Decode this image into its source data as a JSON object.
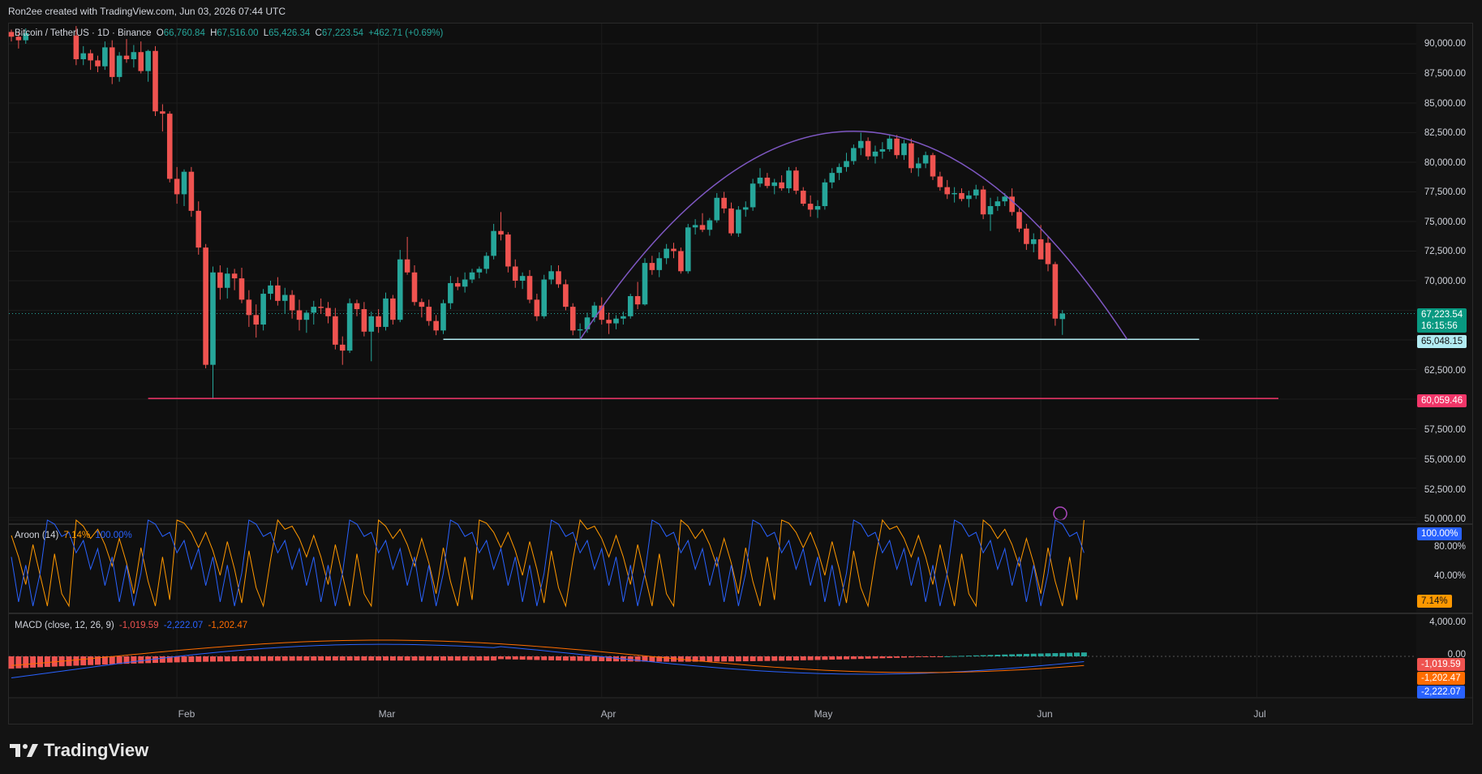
{
  "header": {
    "caption": "Ron2ee created with TradingView.com, Jun 03, 2026 07:44 UTC"
  },
  "main_legend": {
    "symbol": "Bitcoin / TetherUS · 1D · Binance",
    "o_label": "O",
    "o": "66,760.84",
    "h_label": "H",
    "h": "67,516.00",
    "l_label": "L",
    "l": "65,426.34",
    "c_label": "C",
    "c": "67,223.54",
    "change": "+462.71 (+0.69%)"
  },
  "aroon_legend": {
    "name": "Aroon (14)",
    "up": "7.14%",
    "down": "100.00%"
  },
  "macd_legend": {
    "name": "MACD (close, 12, 26, 9)",
    "hist": "-1,019.59",
    "macd": "-2,222.07",
    "signal": "-1,202.47"
  },
  "price_axis": [
    "90,000.00",
    "87,500.00",
    "85,000.00",
    "82,500.00",
    "80,000.00",
    "77,500.00",
    "75,000.00",
    "72,500.00",
    "70,000.00",
    "62,500.00",
    "57,500.00",
    "55,000.00",
    "52,500.00",
    "50,000.00"
  ],
  "price_tags": {
    "last": "67,223.54",
    "countdown": "16:15:56",
    "support": "65,048.15",
    "low": "60,059.46"
  },
  "aroon_axis": [
    "80.00%",
    "40.00%"
  ],
  "aroon_tags": {
    "down": "100.00%",
    "up": "7.14%"
  },
  "macd_axis": [
    "4,000.00",
    "0.00"
  ],
  "macd_tags": {
    "hist": "-1,019.59",
    "signal": "-1,202.47",
    "macd": "-2,222.07"
  },
  "x_axis": [
    "Feb",
    "Mar",
    "Apr",
    "May",
    "Jun",
    "Jul"
  ],
  "footer": {
    "brand": "TradingView"
  },
  "colors": {
    "up": "#26a69a",
    "down": "#ef5350",
    "arc": "#7e57c2",
    "support": "#b2ebf2",
    "low_line": "#f23669",
    "aroon_up": "#ff9800",
    "aroon_down": "#2962ff"
  },
  "chart_data": [
    {
      "type": "candlestick",
      "title": "Bitcoin / TetherUS · 1D · Binance",
      "ylim": [
        49600,
        91500
      ],
      "x_range": [
        "2026-01-09",
        "2026-07-07"
      ],
      "horizontal_levels": [
        65048.15,
        60059.46
      ],
      "ohlc_approx": [
        [
          "2026-01-09",
          91000,
          91200,
          90200,
          90600
        ],
        [
          "2026-01-10",
          90600,
          91000,
          89600,
          90300
        ],
        [
          "2026-01-11",
          90300,
          91300,
          90000,
          90900
        ],
        [
          "2026-01-18",
          90700,
          91500,
          88200,
          88700
        ],
        [
          "2026-01-19",
          88700,
          89800,
          88200,
          89200
        ],
        [
          "2026-01-20",
          89200,
          89500,
          87800,
          88600
        ],
        [
          "2026-01-21",
          88600,
          89000,
          87600,
          88100
        ],
        [
          "2026-01-22",
          88100,
          90200,
          87800,
          89700
        ],
        [
          "2026-01-23",
          89700,
          90300,
          86600,
          87200
        ],
        [
          "2026-01-24",
          87200,
          89300,
          86800,
          89000
        ],
        [
          "2026-01-25",
          89000,
          90400,
          88400,
          88700
        ],
        [
          "2026-01-26",
          88700,
          89900,
          88000,
          89300
        ],
        [
          "2026-01-27",
          89300,
          90200,
          87500,
          87700
        ],
        [
          "2026-01-28",
          87700,
          89500,
          86800,
          89400
        ],
        [
          "2026-01-29",
          89400,
          89800,
          83900,
          84300
        ],
        [
          "2026-01-30",
          84300,
          84900,
          82600,
          84100
        ],
        [
          "2026-01-31",
          84100,
          84300,
          78300,
          78600
        ],
        [
          "2026-02-01",
          78600,
          79600,
          76500,
          77300
        ],
        [
          "2026-02-02",
          77300,
          79400,
          76300,
          79200
        ],
        [
          "2026-02-03",
          79200,
          79600,
          75400,
          75900
        ],
        [
          "2026-02-04",
          75900,
          76700,
          72200,
          72800
        ],
        [
          "2026-02-05",
          72800,
          73100,
          62600,
          62900
        ],
        [
          "2026-02-06",
          62900,
          71200,
          60100,
          70700
        ],
        [
          "2026-02-07",
          70700,
          71300,
          68400,
          69400
        ],
        [
          "2026-02-08",
          69400,
          71100,
          68500,
          70600
        ],
        [
          "2026-02-09",
          70600,
          71000,
          69200,
          70200
        ],
        [
          "2026-02-10",
          70200,
          71100,
          68100,
          68400
        ],
        [
          "2026-02-11",
          68400,
          69200,
          66100,
          67100
        ],
        [
          "2026-02-12",
          67100,
          68000,
          65200,
          66300
        ],
        [
          "2026-02-13",
          66300,
          69300,
          65800,
          68900
        ],
        [
          "2026-02-14",
          68900,
          70000,
          68400,
          69600
        ],
        [
          "2026-02-15",
          69600,
          70300,
          67900,
          68300
        ],
        [
          "2026-02-16",
          68300,
          69400,
          67200,
          68800
        ],
        [
          "2026-02-17",
          68800,
          69200,
          66800,
          67500
        ],
        [
          "2026-02-18",
          67500,
          68400,
          65800,
          66700
        ],
        [
          "2026-02-19",
          66700,
          67500,
          65600,
          67300
        ],
        [
          "2026-02-20",
          67300,
          68300,
          66300,
          67800
        ],
        [
          "2026-02-21",
          67800,
          68500,
          67200,
          67700
        ],
        [
          "2026-02-22",
          67700,
          68200,
          66400,
          67000
        ],
        [
          "2026-02-23",
          67000,
          67700,
          64200,
          64600
        ],
        [
          "2026-02-24",
          64600,
          65300,
          62900,
          64100
        ],
        [
          "2026-02-25",
          64100,
          68500,
          63900,
          68100
        ],
        [
          "2026-02-26",
          68100,
          68400,
          67000,
          67600
        ],
        [
          "2026-02-27",
          67600,
          68200,
          65300,
          65700
        ],
        [
          "2026-02-28",
          65700,
          67400,
          63200,
          67000
        ],
        [
          "2026-03-01",
          67000,
          67600,
          65600,
          66100
        ],
        [
          "2026-03-02",
          66100,
          69000,
          65800,
          68500
        ],
        [
          "2026-03-03",
          68500,
          68800,
          66300,
          66700
        ],
        [
          "2026-03-04",
          66700,
          72600,
          66500,
          71800
        ],
        [
          "2026-03-05",
          71800,
          73700,
          70500,
          70700
        ],
        [
          "2026-03-06",
          70700,
          71300,
          67900,
          68200
        ],
        [
          "2026-03-07",
          68200,
          68500,
          66900,
          67800
        ],
        [
          "2026-03-08",
          67800,
          68400,
          66200,
          66600
        ],
        [
          "2026-03-09",
          66600,
          67100,
          65400,
          65800
        ],
        [
          "2026-03-10",
          65800,
          68400,
          65500,
          68100
        ],
        [
          "2026-03-11",
          68100,
          70400,
          67600,
          69800
        ],
        [
          "2026-03-12",
          69800,
          70300,
          69200,
          69500
        ],
        [
          "2026-03-13",
          69500,
          70700,
          69000,
          70100
        ],
        [
          "2026-03-14",
          70100,
          71000,
          69800,
          70700
        ],
        [
          "2026-03-15",
          70700,
          71200,
          70200,
          71000
        ],
        [
          "2026-03-16",
          71000,
          72400,
          70600,
          72100
        ],
        [
          "2026-03-17",
          72100,
          74800,
          71800,
          74200
        ],
        [
          "2026-03-18",
          74200,
          75800,
          73400,
          73900
        ],
        [
          "2026-03-19",
          73900,
          74100,
          70700,
          71200
        ],
        [
          "2026-03-20",
          71200,
          71800,
          69400,
          70000
        ],
        [
          "2026-03-21",
          70000,
          70700,
          69300,
          70400
        ],
        [
          "2026-03-22",
          70400,
          70900,
          68100,
          68400
        ],
        [
          "2026-03-23",
          68400,
          68900,
          66600,
          67000
        ],
        [
          "2026-03-24",
          67000,
          70500,
          66800,
          70100
        ],
        [
          "2026-03-25",
          70100,
          71300,
          69700,
          70800
        ],
        [
          "2026-03-26",
          70800,
          71300,
          69400,
          69700
        ],
        [
          "2026-03-27",
          69700,
          70100,
          67500,
          67800
        ],
        [
          "2026-03-28",
          67800,
          68100,
          65400,
          65800
        ],
        [
          "2026-03-29",
          65800,
          66400,
          65000,
          65900
        ],
        [
          "2026-03-30",
          65900,
          67300,
          65600,
          66900
        ],
        [
          "2026-03-31",
          66900,
          68200,
          66500,
          67900
        ],
        [
          "2026-04-01",
          67900,
          68600,
          66300,
          66700
        ],
        [
          "2026-04-02",
          66700,
          67300,
          65500,
          66400
        ],
        [
          "2026-04-03",
          66400,
          67100,
          65900,
          66800
        ],
        [
          "2026-04-04",
          66800,
          67400,
          66300,
          67000
        ],
        [
          "2026-04-05",
          67000,
          68900,
          66800,
          68700
        ],
        [
          "2026-04-06",
          68700,
          69900,
          67600,
          68000
        ],
        [
          "2026-04-07",
          68000,
          71900,
          67900,
          71500
        ],
        [
          "2026-04-08",
          71500,
          72100,
          70500,
          70900
        ],
        [
          "2026-04-09",
          70900,
          72400,
          70300,
          71900
        ],
        [
          "2026-04-10",
          71900,
          73100,
          71400,
          72700
        ],
        [
          "2026-04-11",
          72700,
          73200,
          71900,
          72500
        ],
        [
          "2026-04-12",
          72500,
          72800,
          70600,
          70800
        ],
        [
          "2026-04-13",
          70800,
          74800,
          70600,
          74500
        ],
        [
          "2026-04-14",
          74500,
          75200,
          73900,
          74700
        ],
        [
          "2026-04-15",
          74700,
          75700,
          74100,
          74300
        ],
        [
          "2026-04-16",
          74300,
          75300,
          73800,
          75100
        ],
        [
          "2026-04-17",
          75100,
          77400,
          74900,
          77000
        ],
        [
          "2026-04-18",
          77000,
          77500,
          75700,
          76100
        ],
        [
          "2026-04-19",
          76100,
          76600,
          73800,
          74000
        ],
        [
          "2026-04-20",
          74000,
          76300,
          73700,
          76000
        ],
        [
          "2026-04-21",
          76000,
          76700,
          75400,
          76200
        ],
        [
          "2026-04-22",
          76200,
          78600,
          75900,
          78200
        ],
        [
          "2026-04-23",
          78200,
          79500,
          77900,
          78700
        ],
        [
          "2026-04-24",
          78700,
          79100,
          77800,
          78000
        ],
        [
          "2026-04-25",
          78000,
          78600,
          77300,
          78300
        ],
        [
          "2026-04-26",
          78300,
          78900,
          77600,
          77800
        ],
        [
          "2026-04-27",
          77800,
          79600,
          77400,
          79300
        ],
        [
          "2026-04-28",
          79300,
          79600,
          77300,
          77600
        ],
        [
          "2026-04-29",
          77600,
          77900,
          76300,
          76500
        ],
        [
          "2026-04-30",
          76500,
          77200,
          75400,
          76000
        ],
        [
          "2026-05-01",
          76000,
          76800,
          75300,
          76300
        ],
        [
          "2026-05-02",
          76300,
          78600,
          76000,
          78300
        ],
        [
          "2026-05-03",
          78300,
          79500,
          77800,
          79100
        ],
        [
          "2026-05-04",
          79100,
          79900,
          78500,
          79600
        ],
        [
          "2026-05-05",
          79600,
          80800,
          79200,
          80100
        ],
        [
          "2026-05-06",
          80100,
          81500,
          79800,
          81200
        ],
        [
          "2026-05-07",
          81200,
          82500,
          80600,
          81800
        ],
        [
          "2026-05-08",
          81800,
          82100,
          80200,
          80500
        ],
        [
          "2026-05-09",
          80500,
          81400,
          79900,
          80900
        ],
        [
          "2026-05-10",
          80900,
          81700,
          80300,
          81100
        ],
        [
          "2026-05-11",
          81100,
          82300,
          80900,
          82000
        ],
        [
          "2026-05-12",
          82000,
          82300,
          80300,
          80600
        ],
        [
          "2026-05-13",
          80600,
          81900,
          80200,
          81600
        ],
        [
          "2026-05-14",
          81600,
          82000,
          79100,
          79500
        ],
        [
          "2026-05-15",
          79500,
          80400,
          78800,
          79900
        ],
        [
          "2026-05-16",
          79900,
          80900,
          79500,
          80600
        ],
        [
          "2026-05-17",
          80600,
          80800,
          78500,
          78800
        ],
        [
          "2026-05-18",
          78800,
          79200,
          77600,
          77900
        ],
        [
          "2026-05-19",
          77900,
          78500,
          76900,
          77300
        ],
        [
          "2026-05-20",
          77300,
          77900,
          76600,
          77400
        ],
        [
          "2026-05-21",
          77400,
          77800,
          76700,
          76900
        ],
        [
          "2026-05-22",
          76900,
          77600,
          76200,
          77200
        ],
        [
          "2026-05-23",
          77200,
          78100,
          76900,
          77700
        ],
        [
          "2026-05-24",
          77700,
          78000,
          75200,
          75600
        ],
        [
          "2026-05-25",
          75600,
          77000,
          74200,
          76300
        ],
        [
          "2026-05-26",
          76300,
          77100,
          75900,
          76700
        ],
        [
          "2026-05-27",
          76700,
          77400,
          76300,
          77100
        ],
        [
          "2026-05-28",
          77100,
          77800,
          75500,
          75800
        ],
        [
          "2026-05-29",
          75800,
          76100,
          74100,
          74400
        ],
        [
          "2026-05-30",
          74400,
          74800,
          72600,
          73100
        ],
        [
          "2026-05-31",
          73100,
          74000,
          72400,
          73500
        ],
        [
          "2026-06-01",
          73500,
          74700,
          72200,
          71800
        ],
        [
          "2026-06-02",
          73200,
          73700,
          70800,
          71400
        ],
        [
          "2026-06-03",
          71400,
          71600,
          66200,
          66800
        ],
        [
          "2026-06-04",
          66760.84,
          67516,
          65426.34,
          67223.54
        ]
      ]
    },
    {
      "type": "line",
      "title": "Aroon (14)",
      "series": [
        {
          "name": "Aroon Up",
          "last": 7.14
        },
        {
          "name": "Aroon Down",
          "last": 100.0
        }
      ],
      "ylim": [
        0,
        100
      ]
    },
    {
      "type": "bar",
      "title": "MACD (close, 12, 26, 9)",
      "series": [
        {
          "name": "Histogram",
          "last": -1019.59
        },
        {
          "name": "MACD",
          "last": -2222.07
        },
        {
          "name": "Signal",
          "last": -1202.47
        }
      ]
    }
  ]
}
